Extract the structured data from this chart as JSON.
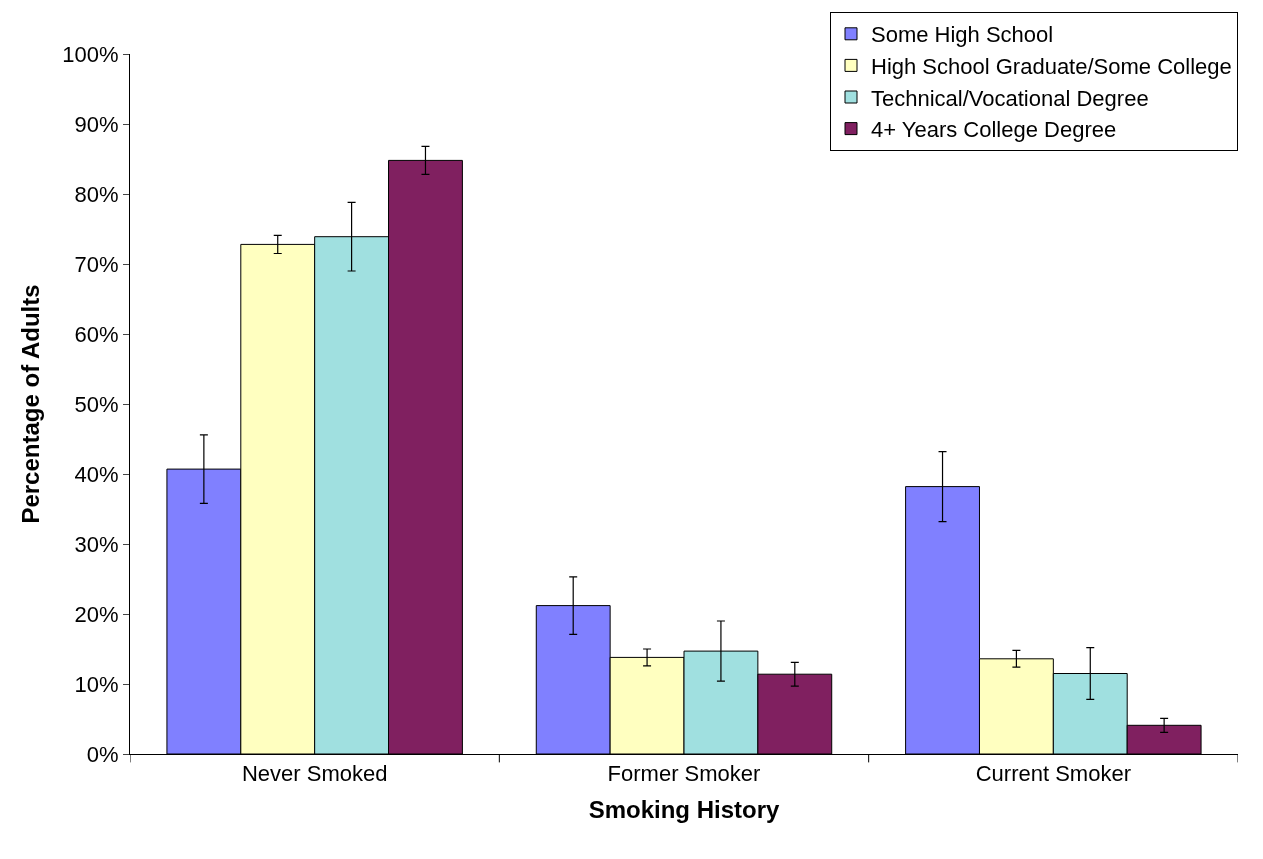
{
  "chart_data": {
    "type": "bar",
    "xlabel": "Smoking History",
    "ylabel": "Percentage of Adults",
    "categories": [
      "Never Smoked",
      "Former Smoker",
      "Current Smoker"
    ],
    "series": [
      {
        "name": "Some High School",
        "color": "#8080ff",
        "values": [
          40.7,
          21.2,
          38.2
        ],
        "errors": [
          4.9,
          4.1,
          5.0
        ]
      },
      {
        "name": "High School Graduate/Some College",
        "color": "#ffffc0",
        "values": [
          72.8,
          13.8,
          13.6
        ],
        "errors": [
          1.3,
          1.2,
          1.2
        ]
      },
      {
        "name": "Technical/Vocational Degree",
        "color": "#a0e0e0",
        "values": [
          73.9,
          14.7,
          11.5
        ],
        "errors": [
          4.9,
          4.3,
          3.7
        ]
      },
      {
        "name": "4+ Years College Degree",
        "color": "#802060",
        "values": [
          84.8,
          11.4,
          4.1
        ],
        "errors": [
          2.0,
          1.7,
          1.0
        ]
      }
    ],
    "ylim": [
      0,
      100
    ],
    "yticks": [
      {
        "value": 0,
        "label": "0%"
      },
      {
        "value": 10,
        "label": "10%"
      },
      {
        "value": 20,
        "label": "20%"
      },
      {
        "value": 30,
        "label": "30%"
      },
      {
        "value": 40,
        "label": "40%"
      },
      {
        "value": 50,
        "label": "50%"
      },
      {
        "value": 60,
        "label": "60%"
      },
      {
        "value": 70,
        "label": "70%"
      },
      {
        "value": 80,
        "label": "80%"
      },
      {
        "value": 90,
        "label": "90%"
      },
      {
        "value": 100,
        "label": "100%"
      }
    ],
    "legend": "top right"
  }
}
